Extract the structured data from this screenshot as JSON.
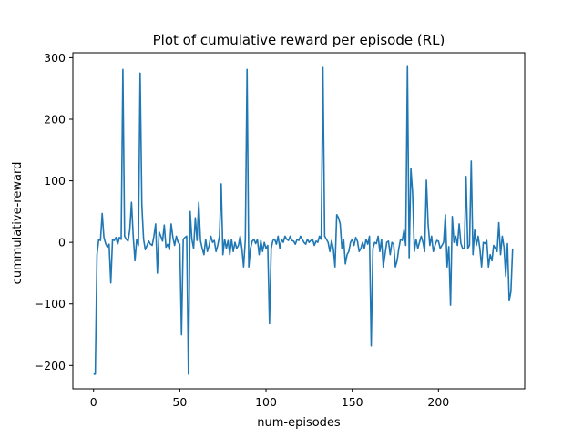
{
  "chart_data": {
    "type": "line",
    "title": "Plot of cumulative reward per episode (RL)",
    "xlabel": "num-episodes",
    "ylabel": "cummulative-reward",
    "xlim": [
      -12,
      250
    ],
    "ylim": [
      -238,
      308
    ],
    "xticks": [
      0,
      50,
      100,
      150,
      200
    ],
    "yticks": [
      -200,
      -100,
      0,
      100,
      200,
      300
    ],
    "grid": false,
    "color": "#1f77b4",
    "series": [
      {
        "values": [
          -214,
          -214,
          -20,
          5,
          3,
          47,
          8,
          -2,
          -8,
          -3,
          -66,
          5,
          3,
          8,
          -3,
          8,
          5,
          281,
          10,
          5,
          2,
          20,
          65,
          10,
          -30,
          5,
          -5,
          275,
          60,
          5,
          -12,
          -5,
          2,
          -3,
          -5,
          10,
          30,
          -50,
          17,
          10,
          2,
          28,
          -8,
          -3,
          -12,
          30,
          8,
          -5,
          10,
          0,
          -3,
          -150,
          5,
          8,
          10,
          -214,
          50,
          5,
          -10,
          40,
          3,
          65,
          3,
          -10,
          -20,
          5,
          -15,
          -5,
          10,
          0,
          3,
          -15,
          -5,
          10,
          95,
          -20,
          5,
          -10,
          3,
          -20,
          5,
          -15,
          0,
          -10,
          -5,
          10,
          -10,
          -40,
          5,
          281,
          -40,
          -10,
          2,
          5,
          -2,
          5,
          -20,
          3,
          -15,
          0,
          -10,
          -5,
          -132,
          -10,
          3,
          5,
          -3,
          10,
          -10,
          5,
          0,
          10,
          5,
          3,
          10,
          3,
          2,
          -3,
          5,
          3,
          10,
          5,
          0,
          -3,
          5,
          0,
          3,
          5,
          -5,
          2,
          0,
          10,
          5,
          284,
          10,
          5,
          0,
          -15,
          3,
          -10,
          -40,
          45,
          40,
          30,
          -10,
          5,
          -35,
          -20,
          -15,
          0,
          5,
          -5,
          8,
          2,
          -15,
          -10,
          0,
          -10,
          5,
          -3,
          10,
          -168,
          -10,
          0,
          -2,
          10,
          -15,
          5,
          -40,
          -20,
          0,
          2,
          -20,
          0,
          -3,
          -40,
          -30,
          -10,
          5,
          3,
          20,
          -5,
          287,
          -25,
          120,
          80,
          -15,
          5,
          -10,
          0,
          10,
          0,
          -15,
          101,
          30,
          -5,
          10,
          -15,
          -5,
          3,
          2,
          -10,
          -5,
          0,
          45,
          -40,
          -7,
          -102,
          42,
          0,
          10,
          -5,
          30,
          -2,
          -10,
          -10,
          107,
          -10,
          -5,
          132,
          -20,
          20,
          -5,
          10,
          -10,
          -40,
          0,
          -2,
          3,
          -40,
          -20,
          -30,
          -5,
          -10,
          -15,
          32,
          -20,
          10,
          -8,
          -55,
          -2,
          -95,
          -80,
          -10
        ]
      }
    ]
  }
}
